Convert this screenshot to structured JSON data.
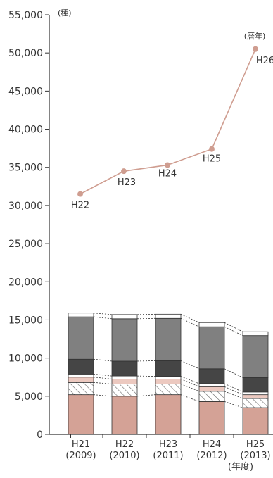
{
  "chart_data": [
    {
      "type": "bar",
      "stacked": true,
      "unit_label": "(種)",
      "x_unit_label": "(年度)",
      "categories": [
        {
          "era": "H21",
          "year": "(2009)"
        },
        {
          "era": "H22",
          "year": "(2010)"
        },
        {
          "era": "H23",
          "year": "(2011)"
        },
        {
          "era": "H24",
          "year": "(2012)"
        },
        {
          "era": "H25",
          "year": "(2013)"
        }
      ],
      "ylim": [
        0,
        55000
      ],
      "yticks": [
        "0",
        "5,000",
        "10,000",
        "15,000",
        "20,000",
        "25,000",
        "30,000",
        "35,000",
        "40,000",
        "45,000",
        "50,000",
        "55,000"
      ],
      "series": [
        {
          "values": [
            5200,
            5000,
            5200,
            4300,
            3500
          ],
          "color": "#d4a296",
          "pattern": "solid"
        },
        {
          "values": [
            1600,
            1600,
            1400,
            1350,
            1200
          ],
          "color": "#ffffff",
          "pattern": "hatch"
        },
        {
          "values": [
            700,
            650,
            650,
            600,
            500
          ],
          "color": "#ecc9c0",
          "pattern": "solid"
        },
        {
          "values": [
            400,
            400,
            350,
            400,
            350
          ],
          "color": "#ffffff",
          "pattern": "solid"
        },
        {
          "values": [
            1950,
            1950,
            2050,
            1950,
            1900
          ],
          "color": "#454545",
          "pattern": "solid"
        },
        {
          "values": [
            5550,
            5550,
            5550,
            5500,
            5500
          ],
          "color": "#808080",
          "pattern": "solid"
        },
        {
          "values": [
            500,
            550,
            550,
            550,
            500
          ],
          "color": "#ffffff",
          "pattern": "solid"
        }
      ],
      "grid": false,
      "connector_lines": "dotted"
    },
    {
      "type": "line",
      "unit_label": "(暦年)",
      "color": "#cf9d90",
      "points": [
        {
          "label": "H22",
          "value": 31500
        },
        {
          "label": "H23",
          "value": 34500
        },
        {
          "label": "H24",
          "value": 35300
        },
        {
          "label": "H25",
          "value": 37400
        },
        {
          "label": "H26",
          "value": 50500
        }
      ]
    }
  ]
}
